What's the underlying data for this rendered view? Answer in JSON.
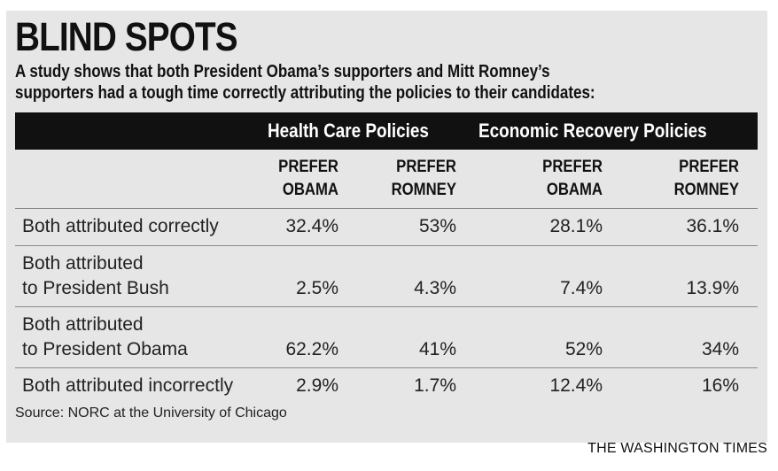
{
  "chart_data": {
    "type": "table",
    "title": "BLIND SPOTS",
    "subtitle": [
      "A study shows that both President Obama’s supporters and Mitt Romney’s",
      "supporters had a tough time correctly attributing the policies to their candidates:"
    ],
    "groups": [
      "Health Care Policies",
      "Economic Recovery Policies"
    ],
    "columns": [
      [
        "PREFER",
        "OBAMA"
      ],
      [
        "PREFER",
        "ROMNEY"
      ],
      [
        "PREFER",
        "OBAMA"
      ],
      [
        "PREFER",
        "ROMNEY"
      ]
    ],
    "rows": [
      {
        "label": [
          "Both attributed correctly"
        ],
        "values": [
          "32.4%",
          "53%",
          "28.1%",
          "36.1%"
        ]
      },
      {
        "label": [
          "Both attributed",
          "to President Bush"
        ],
        "values": [
          "2.5%",
          "4.3%",
          "7.4%",
          "13.9%"
        ]
      },
      {
        "label": [
          "Both attributed",
          "to President Obama"
        ],
        "values": [
          "62.2%",
          "41%",
          "52%",
          "34%"
        ]
      },
      {
        "label": [
          "Both attributed incorrectly"
        ],
        "values": [
          "2.9%",
          "1.7%",
          "12.4%",
          "16%"
        ]
      }
    ],
    "source": "Source: NORC at the University of Chicago",
    "credit": "THE WASHINGTON TIMES"
  }
}
